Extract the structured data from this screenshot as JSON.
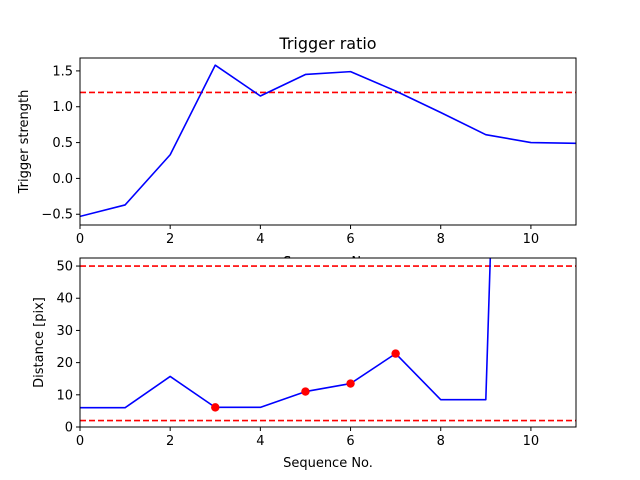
{
  "colors": {
    "series": "#0000ff",
    "threshold": "#ff0000",
    "marker": "#ff0000",
    "axes": "#000000",
    "background": "#ffffff"
  },
  "chart_data": [
    {
      "type": "line",
      "title": "Trigger ratio",
      "xlabel": "Sequence No.",
      "ylabel": "Trigger strength",
      "xlim": [
        0,
        11
      ],
      "ylim": [
        -0.65,
        1.68
      ],
      "xticks": [
        0,
        2,
        4,
        6,
        8,
        10
      ],
      "yticks": [
        -0.5,
        0.0,
        0.5,
        1.0,
        1.5
      ],
      "ytick_labels": [
        "−0.5",
        "0.0",
        "0.5",
        "1.0",
        "1.5"
      ],
      "grid": false,
      "series": [
        {
          "x": [
            0,
            1,
            2,
            3,
            4,
            5,
            6,
            7,
            8,
            9,
            10,
            11
          ],
          "y": [
            -0.53,
            -0.37,
            0.33,
            1.58,
            1.15,
            1.45,
            1.49,
            1.22,
            0.92,
            0.61,
            0.5,
            0.49
          ],
          "color": "#0000ff",
          "style": "solid"
        }
      ],
      "hlines": [
        {
          "y": 1.2,
          "color": "#ff0000",
          "style": "dashed"
        }
      ]
    },
    {
      "type": "line",
      "title": "",
      "xlabel": "Sequence No.",
      "ylabel": "Distance [pix]",
      "xlim": [
        0,
        11
      ],
      "ylim": [
        0,
        52.5
      ],
      "xticks": [
        0,
        2,
        4,
        6,
        8,
        10
      ],
      "yticks": [
        0,
        10,
        20,
        30,
        40,
        50
      ],
      "ytick_labels": [
        "0",
        "10",
        "20",
        "30",
        "40",
        "50"
      ],
      "grid": false,
      "series": [
        {
          "x": [
            0,
            1,
            2,
            3,
            4,
            5,
            6,
            7,
            8,
            9,
            9.1
          ],
          "y": [
            6,
            6,
            15.7,
            6.1,
            6.1,
            11,
            13.5,
            22.8,
            8.5,
            8.5,
            53
          ],
          "color": "#0000ff",
          "style": "solid"
        }
      ],
      "markers": [
        {
          "x": 3,
          "y": 6.1
        },
        {
          "x": 5,
          "y": 11
        },
        {
          "x": 6,
          "y": 13.5
        },
        {
          "x": 7,
          "y": 22.8
        }
      ],
      "hlines": [
        {
          "y": 50,
          "color": "#ff0000",
          "style": "dashed"
        },
        {
          "y": 2,
          "color": "#ff0000",
          "style": "dashed"
        }
      ]
    }
  ]
}
